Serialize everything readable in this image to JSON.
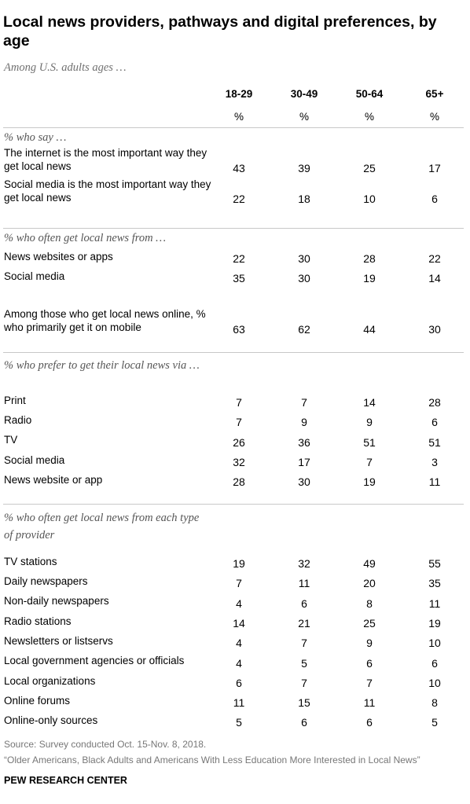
{
  "title": "Local news providers, pathways and digital preferences, by age",
  "subtitle": "Among U.S. adults ages …",
  "columns": [
    "18-29",
    "30-49",
    "50-64",
    "65+"
  ],
  "unit": "%",
  "source": "Source: Survey conducted Oct. 15-Nov. 8, 2018.",
  "note": "“Older Americans, Black Adults and Americans With Less Education More Interested in Local News”",
  "credit": "PEW RESEARCH CENTER",
  "chart_data": {
    "type": "table",
    "title": "Local news providers, pathways and digital preferences, by age",
    "columns": [
      "18-29",
      "30-49",
      "50-64",
      "65+"
    ],
    "sections": [
      {
        "heading": "% who say …",
        "rows": [
          {
            "label": "The internet is the most important way they get local news",
            "values": [
              43,
              39,
              25,
              17
            ]
          },
          {
            "label": "Social media is the most important way they get local news",
            "values": [
              22,
              18,
              10,
              6
            ]
          }
        ]
      },
      {
        "heading": "% who often get local news from …",
        "rows": [
          {
            "label": "News websites or apps",
            "values": [
              22,
              30,
              28,
              22
            ]
          },
          {
            "label": "Social media",
            "values": [
              35,
              30,
              19,
              14
            ]
          }
        ]
      },
      {
        "heading": "",
        "rows": [
          {
            "label": "Among those who get local news online, % who primarily get it on mobile",
            "values": [
              63,
              62,
              44,
              30
            ]
          }
        ]
      },
      {
        "heading": "% who prefer to get their local news via …",
        "rows": [
          {
            "label": "Print",
            "values": [
              7,
              7,
              14,
              28
            ]
          },
          {
            "label": "Radio",
            "values": [
              7,
              9,
              9,
              6
            ]
          },
          {
            "label": "TV",
            "values": [
              26,
              36,
              51,
              51
            ]
          },
          {
            "label": "Social media",
            "values": [
              32,
              17,
              7,
              3
            ]
          },
          {
            "label": "News website or app",
            "values": [
              28,
              30,
              19,
              11
            ]
          }
        ]
      },
      {
        "heading": "% who often get local news from each type of provider",
        "rows": [
          {
            "label": "TV stations",
            "values": [
              19,
              32,
              49,
              55
            ]
          },
          {
            "label": "Daily newspapers",
            "values": [
              7,
              11,
              20,
              35
            ]
          },
          {
            "label": "Non-daily newspapers",
            "values": [
              4,
              6,
              8,
              11
            ]
          },
          {
            "label": "Radio stations",
            "values": [
              14,
              21,
              25,
              19
            ]
          },
          {
            "label": "Newsletters or listservs",
            "values": [
              4,
              7,
              9,
              10
            ]
          },
          {
            "label": "Local government agencies or officials",
            "values": [
              4,
              5,
              6,
              6
            ]
          },
          {
            "label": "Local organizations",
            "values": [
              6,
              7,
              7,
              10
            ]
          },
          {
            "label": "Online forums",
            "values": [
              11,
              15,
              11,
              8
            ]
          },
          {
            "label": "Online-only sources",
            "values": [
              5,
              6,
              6,
              5
            ]
          }
        ]
      }
    ]
  }
}
